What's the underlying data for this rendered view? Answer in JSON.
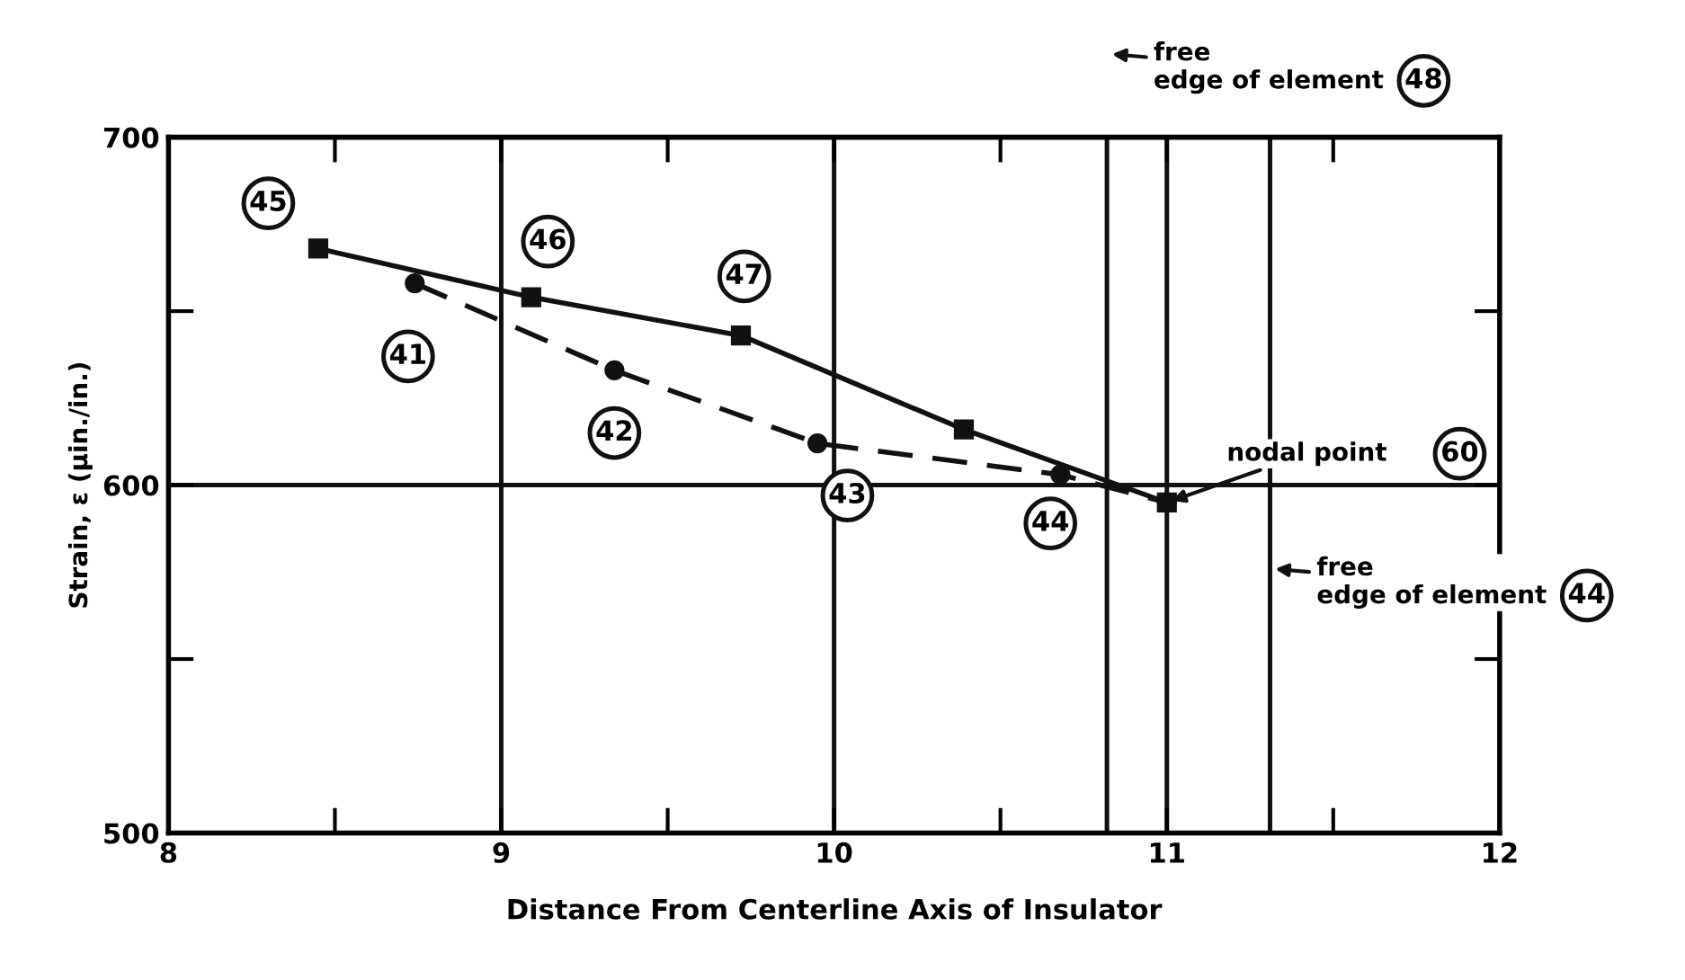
{
  "chart_data": {
    "type": "line",
    "xlabel": "Distance From Centerline Axis of Insulator",
    "ylabel": "Strain, ε (μin./in.)",
    "xlim": [
      8,
      12
    ],
    "ylim": [
      500,
      700
    ],
    "xticks": [
      8,
      {
        "value": 8.5,
        "label": null
      },
      9,
      {
        "value": 9.5,
        "label": null
      },
      10,
      {
        "value": 10.5,
        "label": null
      },
      11,
      {
        "value": 11.5,
        "label": null
      },
      12
    ],
    "yticks": [
      500,
      {
        "value": 550,
        "label": null
      },
      600,
      {
        "value": 650,
        "label": null
      },
      700
    ],
    "grid": true,
    "series": [
      {
        "color": "#111111",
        "marker": "square",
        "line_style": "solid",
        "x": [
          8.45,
          9.09,
          9.72,
          10.39,
          11.0
        ],
        "values": [
          668,
          654,
          643,
          616,
          595
        ]
      },
      {
        "color": "#111111",
        "marker": "circle",
        "line_style": "dashed",
        "x": [
          8.74,
          9.34,
          9.95,
          10.68,
          11.0
        ],
        "values": [
          658,
          633,
          612,
          603,
          595
        ]
      }
    ],
    "ref_lines": [
      {
        "axis": "x",
        "value": 10.82,
        "label": "free\nedge of element"
      },
      {
        "axis": "x",
        "value": 11.31,
        "label": "free\nedge of element"
      }
    ],
    "annotations": [
      {
        "text": "45",
        "x": 8.3,
        "y": 681
      },
      {
        "text": "46",
        "x": 9.14,
        "y": 670
      },
      {
        "text": "47",
        "x": 9.73,
        "y": 660
      },
      {
        "text": "41",
        "x": 8.72,
        "y": 637
      },
      {
        "text": "42",
        "x": 9.34,
        "y": 615
      },
      {
        "text": "43",
        "x": 10.04,
        "y": 597
      },
      {
        "text": "44",
        "x": 10.65,
        "y": 589
      },
      {
        "text": "nodal point",
        "x": 11.0,
        "y": 595
      },
      {
        "text": "60",
        "x": 11.88,
        "y": 609
      },
      "48",
      "44"
    ]
  }
}
